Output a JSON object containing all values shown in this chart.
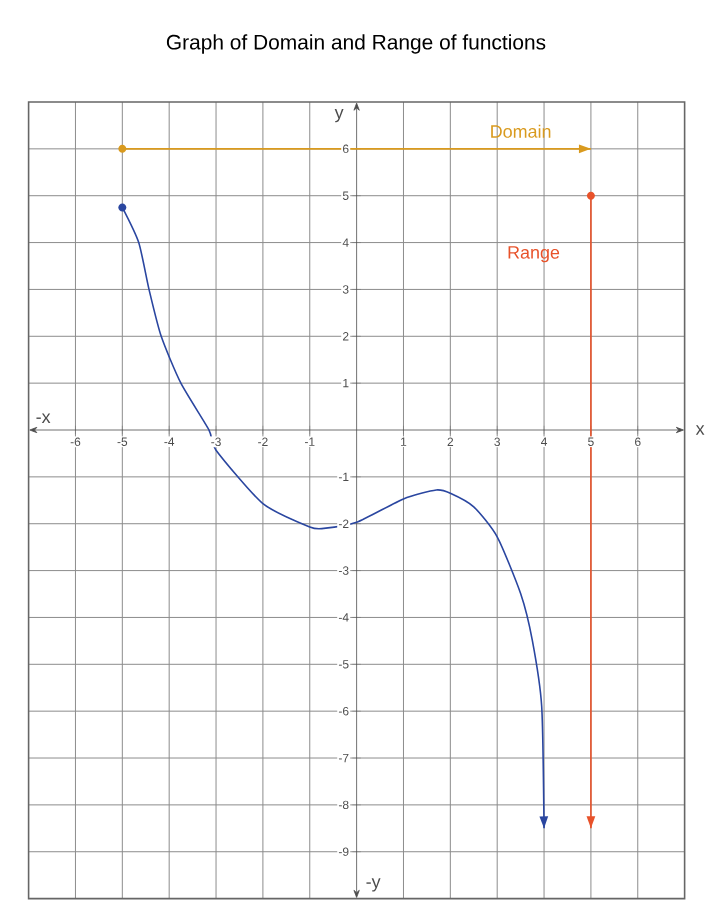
{
  "chart_data": {
    "type": "line",
    "title": "Graph of Domain and Range of functions",
    "xlabel": "x",
    "ylabel": "y",
    "annotations": [
      "-x",
      "-y"
    ],
    "xlim": [
      -7,
      7
    ],
    "ylim": [
      -10,
      7
    ],
    "xticks": [
      -6,
      -5,
      -4,
      -3,
      -2,
      -1,
      1,
      2,
      3,
      4,
      5,
      6
    ],
    "yticks": [
      -9,
      -8,
      -7,
      -6,
      -5,
      -4,
      -3,
      -2,
      -1,
      1,
      2,
      3,
      4,
      5,
      6
    ],
    "grid": true,
    "series": [
      {
        "color": "#2a46a0",
        "x": [
          -5,
          -4.65,
          -4.43,
          -4.17,
          -3.75,
          -3.15,
          -3,
          -2,
          -1,
          -0.7,
          0,
          1,
          1.7,
          2,
          2.5,
          3,
          3.5,
          3.75,
          3.95,
          4
        ],
        "values": [
          4.75,
          4,
          3,
          2,
          1,
          0,
          -0.43,
          -1.57,
          -2.07,
          -2.1,
          -1.97,
          -1.47,
          -1.28,
          -1.35,
          -1.64,
          -2.28,
          -3.49,
          -4.49,
          -5.9,
          -8.5
        ]
      },
      {
        "name": "Domain",
        "color": "#d99a1e",
        "x": [
          -5,
          5
        ],
        "values": [
          6,
          6
        ]
      },
      {
        "name": "Range",
        "color": "#e8522a",
        "x": [
          5,
          5
        ],
        "values": [
          5,
          -8.5
        ]
      }
    ]
  }
}
